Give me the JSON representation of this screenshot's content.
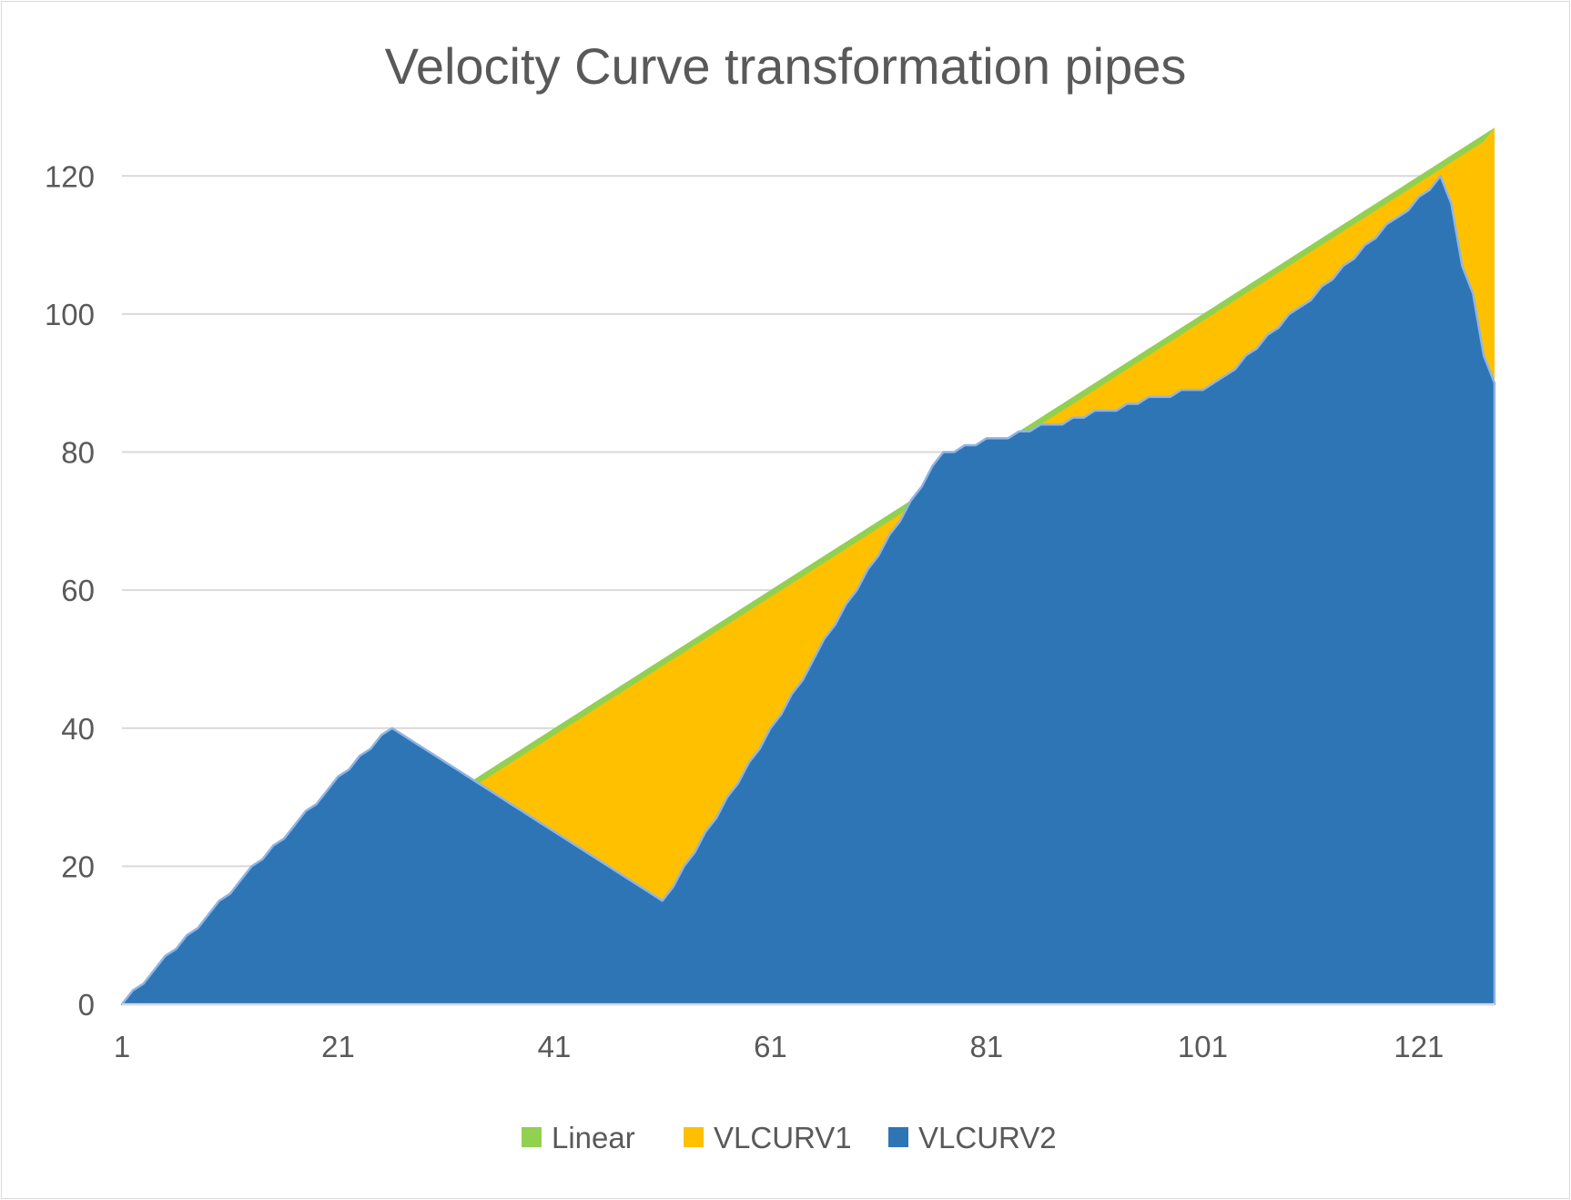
{
  "chart_data": {
    "type": "area",
    "title": "Velocity Curve transformation pipes",
    "xlabel": "",
    "ylabel": "",
    "xlim": [
      1,
      128
    ],
    "ylim": [
      0,
      120
    ],
    "y_ticks": [
      "0",
      "20",
      "40",
      "60",
      "80",
      "100",
      "120"
    ],
    "x_ticks": [
      "1",
      "21",
      "41",
      "61",
      "81",
      "101",
      "121"
    ],
    "grid": "horizontal",
    "legend_position": "bottom",
    "series": [
      {
        "name": "Linear",
        "color": "#92d050",
        "values": [
          0,
          1,
          2,
          3,
          4,
          5,
          6,
          7,
          8,
          9,
          10,
          11,
          12,
          13,
          14,
          15,
          16,
          17,
          18,
          19,
          20,
          21,
          22,
          23,
          24,
          25,
          26,
          27,
          28,
          29,
          30,
          31,
          32,
          33,
          34,
          35,
          36,
          37,
          38,
          39,
          40,
          41,
          42,
          43,
          44,
          45,
          46,
          47,
          48,
          49,
          50,
          51,
          52,
          53,
          54,
          55,
          56,
          57,
          58,
          59,
          60,
          61,
          62,
          63,
          64,
          65,
          66,
          67,
          68,
          69,
          70,
          71,
          72,
          73,
          74,
          75,
          76,
          77,
          78,
          79,
          80,
          81,
          82,
          83,
          84,
          85,
          86,
          87,
          88,
          89,
          90,
          91,
          92,
          93,
          94,
          95,
          96,
          97,
          98,
          99,
          100,
          101,
          102,
          103,
          104,
          105,
          106,
          107,
          108,
          109,
          110,
          111,
          112,
          113,
          114,
          115,
          116,
          117,
          118,
          119,
          120,
          121,
          122,
          123,
          124,
          125,
          126,
          127
        ]
      },
      {
        "name": "VLCURV1",
        "color": "#ffc000",
        "values": [
          0,
          2,
          3,
          5,
          7,
          8,
          10,
          11,
          13,
          15,
          16,
          18,
          20,
          21,
          23,
          24,
          26,
          28,
          29,
          31,
          33,
          34,
          36,
          37,
          39,
          40,
          39,
          38,
          37,
          36,
          35,
          34,
          33,
          32,
          33,
          34,
          35,
          36,
          37,
          38,
          39,
          40,
          41,
          42,
          43,
          44,
          45,
          46,
          47,
          48,
          49,
          50,
          51,
          52,
          53,
          54,
          55,
          56,
          57,
          58,
          59,
          60,
          61,
          62,
          63,
          64,
          65,
          66,
          67,
          68,
          69,
          70,
          71,
          72,
          73,
          74,
          75,
          76,
          77,
          78,
          79,
          80,
          81,
          82,
          83,
          84,
          85,
          86,
          87,
          88,
          89,
          90,
          91,
          92,
          93,
          94,
          95,
          96,
          97,
          98,
          99,
          100,
          101,
          102,
          103,
          104,
          105,
          106,
          107,
          108,
          109,
          110,
          111,
          112,
          113,
          114,
          115,
          116,
          117,
          118,
          119,
          120,
          121,
          122,
          123,
          124,
          125,
          127
        ]
      },
      {
        "name": "VLCURV2",
        "color": "#2e75b6",
        "values": [
          0,
          2,
          3,
          5,
          7,
          8,
          10,
          11,
          13,
          15,
          16,
          18,
          20,
          21,
          23,
          24,
          26,
          28,
          29,
          31,
          33,
          34,
          36,
          37,
          39,
          40,
          39,
          38,
          37,
          36,
          35,
          34,
          33,
          32,
          31,
          30,
          29,
          28,
          27,
          26,
          25,
          24,
          23,
          22,
          21,
          20,
          19,
          18,
          17,
          16,
          15,
          17,
          20,
          22,
          25,
          27,
          30,
          32,
          35,
          37,
          40,
          42,
          45,
          47,
          50,
          53,
          55,
          58,
          60,
          63,
          65,
          68,
          70,
          73,
          75,
          78,
          80,
          80,
          81,
          81,
          82,
          82,
          82,
          83,
          83,
          84,
          84,
          84,
          85,
          85,
          86,
          86,
          86,
          87,
          87,
          88,
          88,
          88,
          89,
          89,
          89,
          90,
          91,
          92,
          94,
          95,
          97,
          98,
          100,
          101,
          102,
          104,
          105,
          107,
          108,
          110,
          111,
          113,
          114,
          115,
          117,
          118,
          120,
          116,
          107,
          103,
          94,
          90
        ]
      }
    ]
  }
}
